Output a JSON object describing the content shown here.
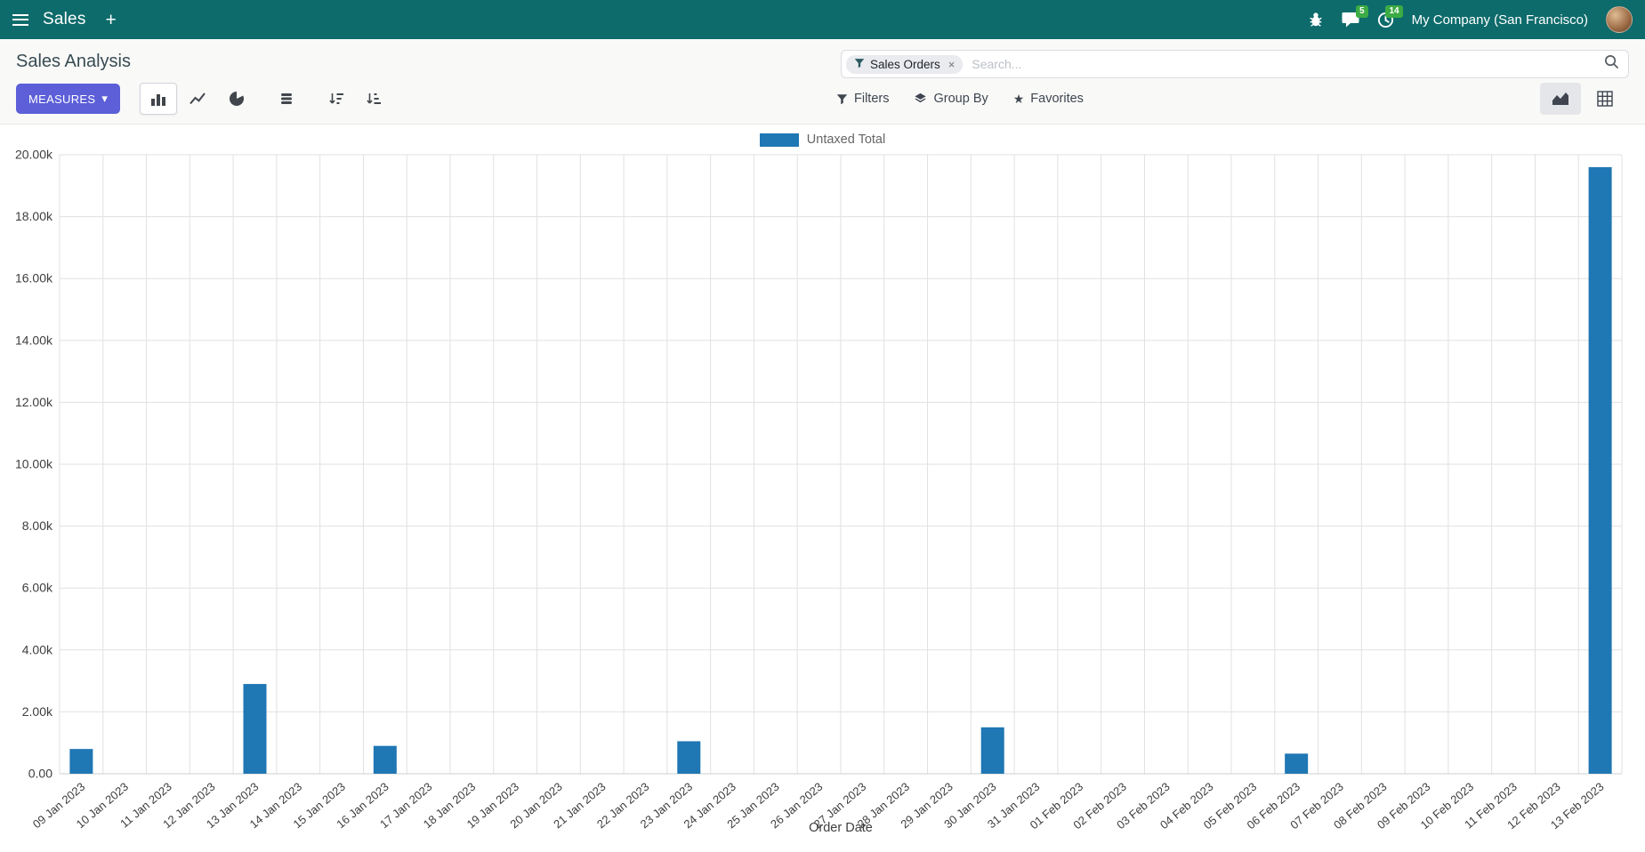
{
  "icons": {
    "plus": "+",
    "caret": "▾",
    "star": "★",
    "close": "×"
  },
  "colors": {
    "topbar": "#0e6b6b",
    "primary_button": "#5c5fd8",
    "badge_green": "#3cab44",
    "bar_blue": "#1f77b4"
  },
  "topbar": {
    "app_name": "Sales",
    "company": "My Company (San Francisco)",
    "message_badge": "5",
    "activity_badge": "14"
  },
  "page": {
    "title": "Sales Analysis"
  },
  "search": {
    "facet_label": "Sales Orders",
    "placeholder": "Search..."
  },
  "toolbar": {
    "measures_label": "MEASURES",
    "filters_label": "Filters",
    "group_by_label": "Group By",
    "favorites_label": "Favorites"
  },
  "chart_data": {
    "type": "bar",
    "title": "",
    "legend_label": "Untaxed Total",
    "legend_position": "top",
    "bar_color": "#1f77b4",
    "xlabel": "Order Date",
    "ylabel": "",
    "ylim": [
      0,
      20000
    ],
    "ytick_step": 2000,
    "ytick_labels": [
      "0.00",
      "2.00k",
      "4.00k",
      "6.00k",
      "8.00k",
      "10.00k",
      "12.00k",
      "14.00k",
      "16.00k",
      "18.00k",
      "20.00k"
    ],
    "grid": true,
    "categories": [
      "09 Jan 2023",
      "10 Jan 2023",
      "11 Jan 2023",
      "12 Jan 2023",
      "13 Jan 2023",
      "14 Jan 2023",
      "15 Jan 2023",
      "16 Jan 2023",
      "17 Jan 2023",
      "18 Jan 2023",
      "19 Jan 2023",
      "20 Jan 2023",
      "21 Jan 2023",
      "22 Jan 2023",
      "23 Jan 2023",
      "24 Jan 2023",
      "25 Jan 2023",
      "26 Jan 2023",
      "27 Jan 2023",
      "28 Jan 2023",
      "29 Jan 2023",
      "30 Jan 2023",
      "31 Jan 2023",
      "01 Feb 2023",
      "02 Feb 2023",
      "03 Feb 2023",
      "04 Feb 2023",
      "05 Feb 2023",
      "06 Feb 2023",
      "07 Feb 2023",
      "08 Feb 2023",
      "09 Feb 2023",
      "10 Feb 2023",
      "11 Feb 2023",
      "12 Feb 2023",
      "13 Feb 2023"
    ],
    "values": [
      800,
      0,
      0,
      0,
      2900,
      0,
      0,
      900,
      0,
      0,
      0,
      0,
      0,
      0,
      1050,
      0,
      0,
      0,
      0,
      0,
      0,
      1500,
      0,
      0,
      0,
      0,
      0,
      0,
      650,
      0,
      0,
      0,
      0,
      0,
      0,
      19600
    ]
  }
}
